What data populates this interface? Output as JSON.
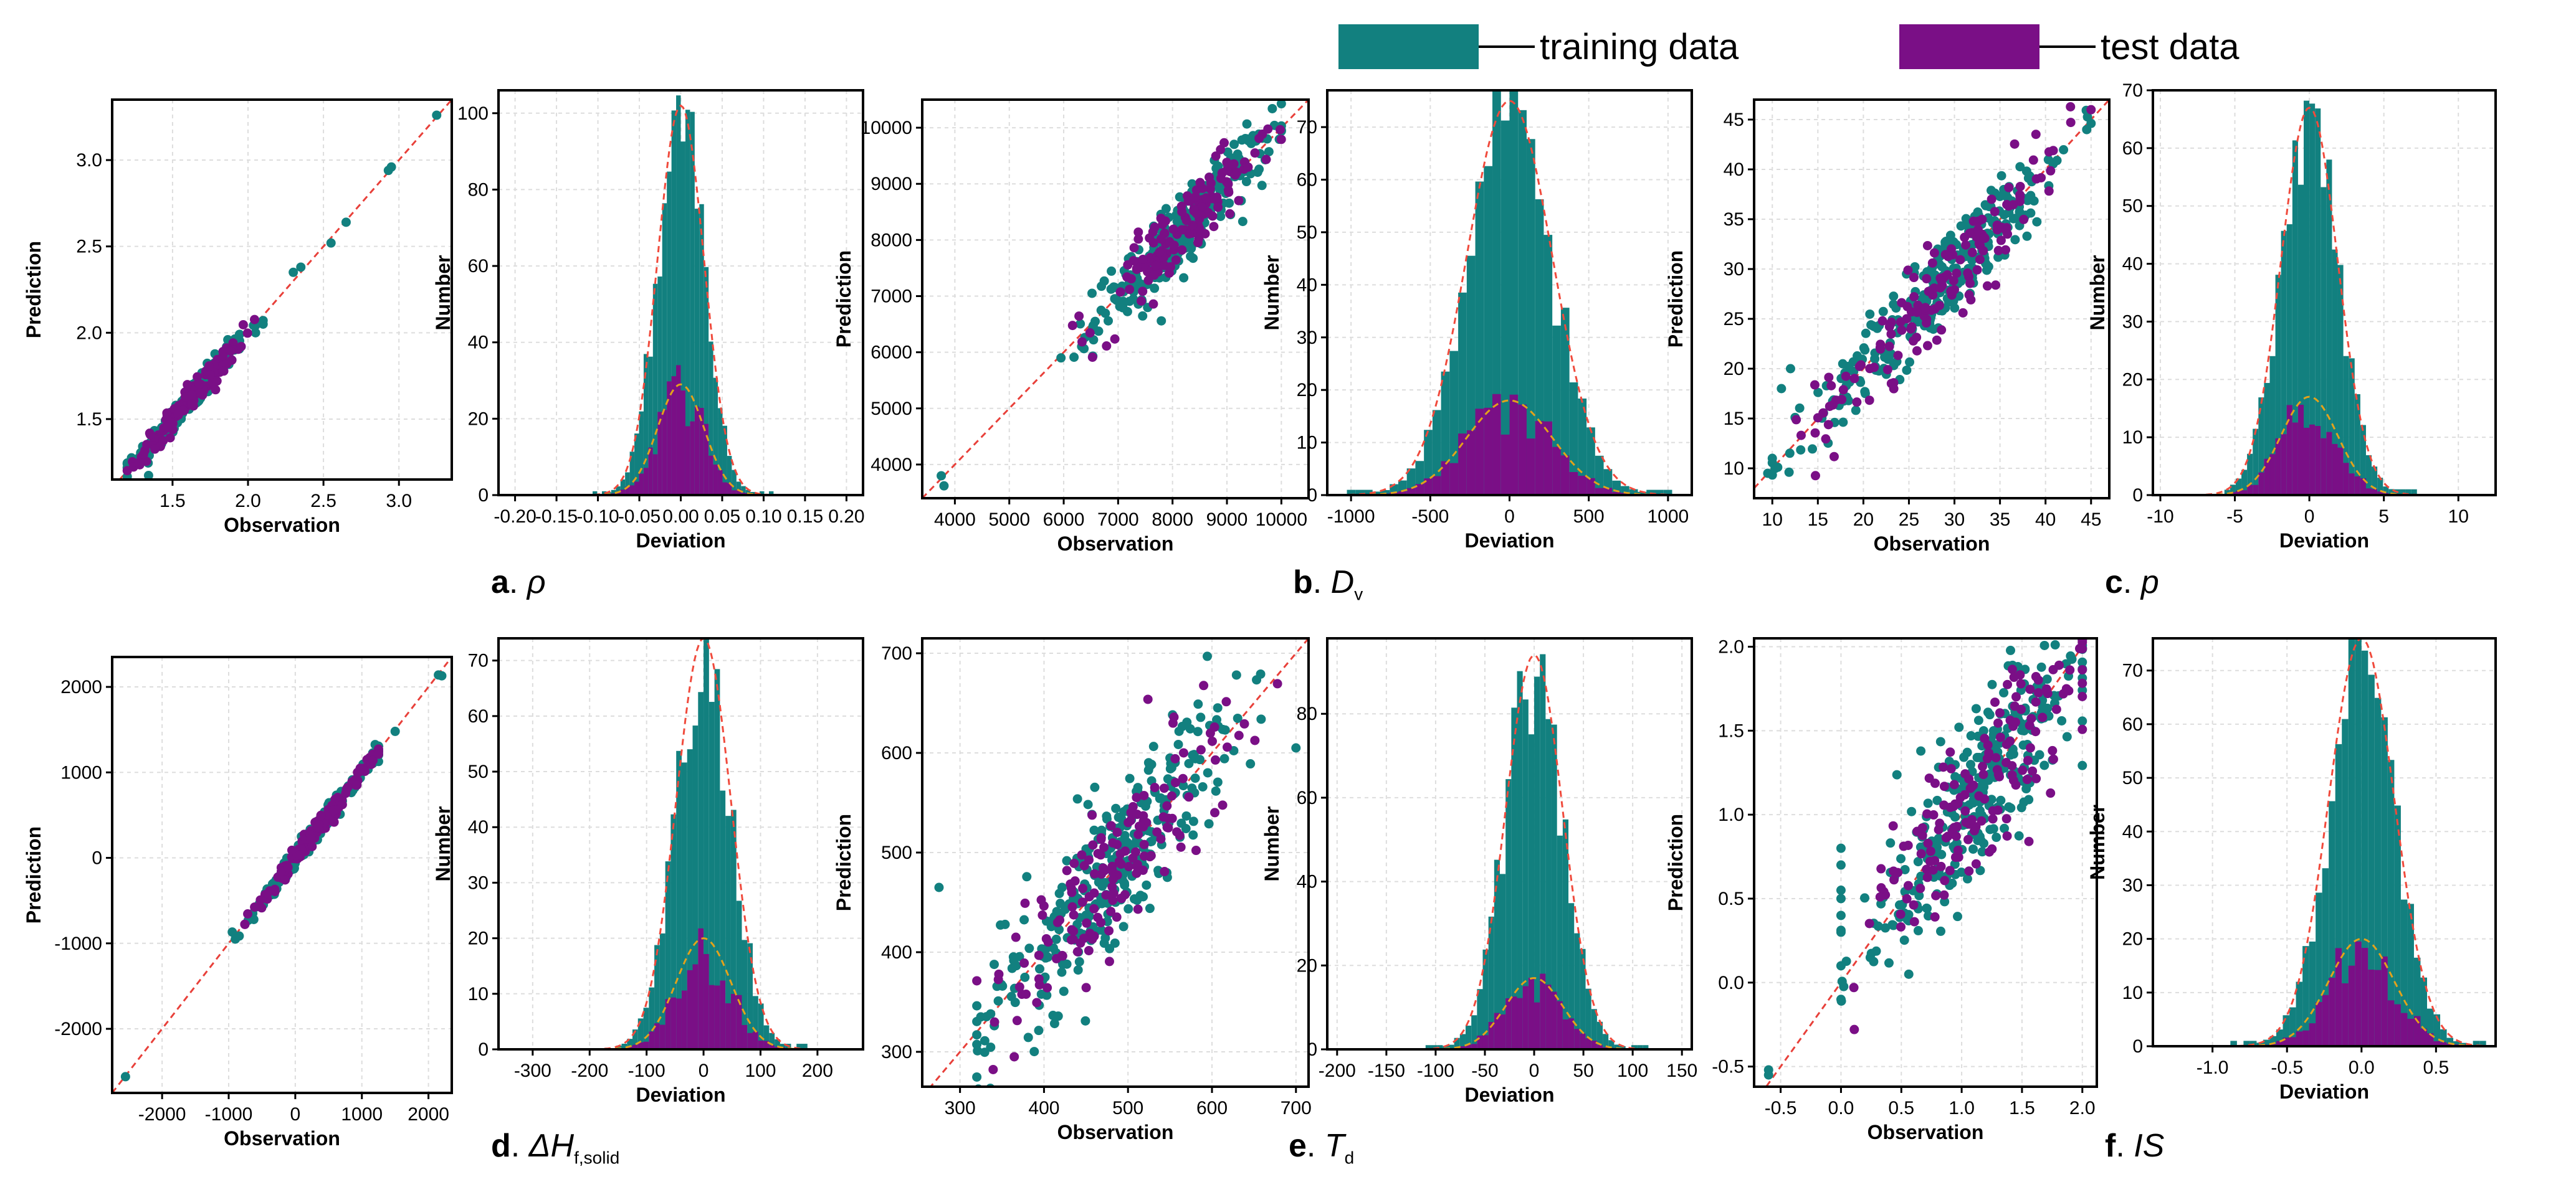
{
  "legend": {
    "training": {
      "label": "training data",
      "color": "#12807F"
    },
    "test": {
      "label": "test data",
      "color": "#7A0F86"
    }
  },
  "colors": {
    "fit_line": "#E8403A",
    "train_curve": "#F04A3C",
    "test_curve": "#E3A21A",
    "grid": "#DDDDDD"
  },
  "panel_labels": [
    {
      "letter": "a",
      "symbol": "ρ",
      "sub": ""
    },
    {
      "letter": "b",
      "symbol": "D",
      "sub": "v"
    },
    {
      "letter": "c",
      "symbol": "p",
      "sub": ""
    },
    {
      "letter": "d",
      "symbol": "ΔH",
      "sub": "f,solid"
    },
    {
      "letter": "e",
      "symbol": "T",
      "sub": "d"
    },
    {
      "letter": "f",
      "symbol": "IS",
      "sub": ""
    }
  ],
  "chart_data": [
    {
      "id": "a_scatter",
      "type": "scatter",
      "xlabel": "Observation",
      "ylabel": "Prediction",
      "xlim": [
        1.1,
        3.35
      ],
      "ylim": [
        1.15,
        3.35
      ],
      "xticks": [
        1.5,
        2.0,
        2.5,
        3.0
      ],
      "xtick_labels": [
        "1.5",
        "2.0",
        "2.5",
        "3.0"
      ],
      "yticks": [
        1.5,
        2.0,
        2.5,
        3.0
      ],
      "ytick_labels": [
        "1.5",
        "2.0",
        "2.5",
        "3.0"
      ],
      "scatter": {
        "min": 1.2,
        "max": 2.1,
        "center": 1.62,
        "sd": 0.18,
        "noise": 0.04,
        "n_train": 260,
        "n_test": 130,
        "extras": [
          [
            2.3,
            2.35
          ],
          [
            2.35,
            2.38
          ],
          [
            2.55,
            2.52
          ],
          [
            2.65,
            2.64
          ],
          [
            2.93,
            2.94
          ],
          [
            2.95,
            2.96
          ],
          [
            3.25,
            3.26
          ],
          [
            2.05,
            2.0
          ],
          [
            2.1,
            2.05
          ]
        ]
      }
    },
    {
      "id": "a_hist",
      "type": "histogram",
      "xlabel": "Deviation",
      "ylabel": "Number",
      "xlim": [
        -0.22,
        0.22
      ],
      "ylim": [
        0,
        106
      ],
      "xticks": [
        -0.2,
        -0.15,
        -0.1,
        -0.05,
        0.0,
        0.05,
        0.1,
        0.15,
        0.2
      ],
      "xtick_labels": [
        "-0.20",
        "-0.15",
        "-0.10",
        "-0.05",
        "0.00",
        "0.05",
        "0.10",
        "0.15",
        "0.20"
      ],
      "yticks": [
        0,
        20,
        40,
        60,
        80,
        100
      ],
      "ytick_labels": [
        "0",
        "20",
        "40",
        "60",
        "80",
        "100"
      ],
      "histogram": {
        "mean": 0.0,
        "sd": 0.028,
        "train_peak": 102,
        "test_peak": 29,
        "bins": 40
      }
    },
    {
      "id": "b_scatter",
      "type": "scatter",
      "xlabel": "Observation",
      "ylabel": "Prediction",
      "xlim": [
        3400,
        10500
      ],
      "ylim": [
        3400,
        10500
      ],
      "xticks": [
        4000,
        5000,
        6000,
        7000,
        8000,
        9000,
        10000
      ],
      "xtick_labels": [
        "4000",
        "5000",
        "6000",
        "7000",
        "8000",
        "9000",
        "10000"
      ],
      "yticks": [
        4000,
        5000,
        6000,
        7000,
        8000,
        9000,
        10000
      ],
      "ytick_labels": [
        "4000",
        "5000",
        "6000",
        "7000",
        "8000",
        "9000",
        "10000"
      ],
      "scatter": {
        "min": 6000,
        "max": 10000,
        "center": 8200,
        "sd": 800,
        "noise": 320,
        "n_train": 280,
        "n_test": 140,
        "extras": [
          [
            3750,
            3800
          ],
          [
            3800,
            3620
          ],
          [
            5950,
            5900
          ]
        ]
      }
    },
    {
      "id": "b_hist",
      "type": "histogram",
      "xlabel": "Deviation",
      "ylabel": "Number",
      "xlim": [
        -1150,
        1150
      ],
      "ylim": [
        0,
        77
      ],
      "xticks": [
        -1000,
        -500,
        0,
        500,
        1000
      ],
      "xtick_labels": [
        "-1000",
        "-500",
        "0",
        "500",
        "1000"
      ],
      "yticks": [
        0,
        10,
        20,
        30,
        40,
        50,
        60,
        70
      ],
      "ytick_labels": [
        "0",
        "10",
        "20",
        "30",
        "40",
        "50",
        "60",
        "70"
      ],
      "histogram": {
        "mean": 0,
        "sd": 270,
        "train_peak": 75,
        "test_peak": 18,
        "bins": 40
      }
    },
    {
      "id": "c_scatter",
      "type": "scatter",
      "xlabel": "Observation",
      "ylabel": "Prediction",
      "xlim": [
        8,
        47
      ],
      "ylim": [
        7,
        47
      ],
      "xticks": [
        10,
        15,
        20,
        25,
        30,
        35,
        40,
        45
      ],
      "xtick_labels": [
        "10",
        "15",
        "20",
        "25",
        "30",
        "35",
        "40",
        "45"
      ],
      "yticks": [
        10,
        15,
        20,
        25,
        30,
        35,
        40,
        45
      ],
      "ytick_labels": [
        "10",
        "15",
        "20",
        "25",
        "30",
        "35",
        "40",
        "45"
      ],
      "scatter": {
        "min": 10,
        "max": 45,
        "center": 29,
        "sd": 7,
        "noise": 2.3,
        "n_train": 300,
        "n_test": 150,
        "extras": [
          [
            9.5,
            9.5
          ],
          [
            10,
            11
          ],
          [
            12,
            20
          ],
          [
            11,
            18
          ]
        ]
      }
    },
    {
      "id": "c_hist",
      "type": "histogram",
      "xlabel": "Deviation",
      "ylabel": "Number",
      "xlim": [
        -10.5,
        12.5
      ],
      "ylim": [
        0,
        70
      ],
      "xticks": [
        -10,
        -5,
        0,
        5,
        10
      ],
      "xtick_labels": [
        "-10",
        "-5",
        "0",
        "5",
        "10"
      ],
      "yticks": [
        0,
        10,
        20,
        30,
        40,
        50,
        60,
        70
      ],
      "ytick_labels": [
        "0",
        "10",
        "20",
        "30",
        "40",
        "50",
        "60",
        "70"
      ],
      "histogram": {
        "mean": 0,
        "sd": 1.9,
        "train_peak": 67,
        "test_peak": 17,
        "bins": 40
      }
    },
    {
      "id": "d_scatter",
      "type": "scatter",
      "xlabel": "Observation",
      "ylabel": "Prediction",
      "xlim": [
        -2750,
        2350
      ],
      "ylim": [
        -2750,
        2350
      ],
      "xticks": [
        -2000,
        -1000,
        0,
        1000,
        2000
      ],
      "xtick_labels": [
        "-2000",
        "-1000",
        "0",
        "1000",
        "2000"
      ],
      "yticks": [
        -2000,
        -1000,
        0,
        1000,
        2000
      ],
      "ytick_labels": [
        "-2000",
        "-1000",
        "0",
        "1000",
        "2000"
      ],
      "scatter": {
        "min": -950,
        "max": 1250,
        "center": 350,
        "sd": 450,
        "noise": 55,
        "n_train": 280,
        "n_test": 140,
        "extras": [
          [
            -2550,
            -2560
          ],
          [
            2150,
            2140
          ],
          [
            2200,
            2130
          ],
          [
            1500,
            1480
          ],
          [
            -900,
            -950
          ]
        ]
      }
    },
    {
      "id": "d_hist",
      "type": "histogram",
      "xlabel": "Deviation",
      "ylabel": "Number",
      "xlim": [
        -360,
        280
      ],
      "ylim": [
        0,
        74
      ],
      "xticks": [
        -300,
        -200,
        -100,
        0,
        100,
        200
      ],
      "xtick_labels": [
        "-300",
        "-200",
        "-100",
        "0",
        "100",
        "200"
      ],
      "yticks": [
        0,
        10,
        20,
        30,
        40,
        50,
        60,
        70
      ],
      "ytick_labels": [
        "0",
        "10",
        "20",
        "30",
        "40",
        "50",
        "60",
        "70"
      ],
      "histogram": {
        "mean": 0,
        "sd": 48,
        "train_peak": 74,
        "test_peak": 20,
        "bins": 40
      }
    },
    {
      "id": "e_scatter",
      "type": "scatter",
      "xlabel": "Observation",
      "ylabel": "Prediction",
      "xlim": [
        255,
        715
      ],
      "ylim": [
        265,
        715
      ],
      "xticks": [
        300,
        400,
        500,
        600,
        700
      ],
      "xtick_labels": [
        "300",
        "400",
        "500",
        "600",
        "700"
      ],
      "yticks": [
        300,
        400,
        500,
        600,
        700
      ],
      "ytick_labels": [
        "300",
        "400",
        "500",
        "600",
        "700"
      ],
      "scatter": {
        "min": 320,
        "max": 680,
        "center": 480,
        "sd": 75,
        "noise": 40,
        "n_train": 320,
        "n_test": 160,
        "extras": [
          [
            275,
            465
          ],
          [
            700,
            605
          ]
        ]
      }
    },
    {
      "id": "e_hist",
      "type": "histogram",
      "xlabel": "Deviation",
      "ylabel": "Number",
      "xlim": [
        -210,
        160
      ],
      "ylim": [
        0,
        98
      ],
      "xticks": [
        -200,
        -150,
        -100,
        -50,
        0,
        50,
        100,
        150
      ],
      "xtick_labels": [
        "-200",
        "-150",
        "-100",
        "-50",
        "0",
        "50",
        "100",
        "150"
      ],
      "yticks": [
        0,
        20,
        40,
        60,
        80
      ],
      "ytick_labels": [
        "0",
        "20",
        "40",
        "60",
        "80"
      ],
      "histogram": {
        "mean": 0,
        "sd": 29,
        "train_peak": 94,
        "test_peak": 17,
        "bins": 40
      }
    },
    {
      "id": "f_scatter",
      "type": "scatter",
      "xlabel": "Observation",
      "ylabel": "Prediction",
      "xlim": [
        -0.72,
        2.12
      ],
      "ylim": [
        -0.62,
        2.05
      ],
      "xticks": [
        -0.5,
        0.0,
        0.5,
        1.0,
        1.5,
        2.0
      ],
      "xtick_labels": [
        "-0.5",
        "0.0",
        "0.5",
        "1.0",
        "1.5",
        "2.0"
      ],
      "yticks": [
        -0.5,
        0.0,
        0.5,
        1.0,
        1.5,
        2.0
      ],
      "ytick_labels": [
        "-0.5",
        "0.0",
        "0.5",
        "1.0",
        "1.5",
        "2.0"
      ],
      "scatter": {
        "min": 0.0,
        "max": 2.0,
        "center": 1.15,
        "sd": 0.45,
        "noise": 0.25,
        "n_train": 320,
        "n_test": 160,
        "extras": [
          [
            -0.6,
            -0.52
          ],
          [
            -0.6,
            -0.55
          ],
          [
            0.0,
            -0.1
          ],
          [
            0.0,
            0.1
          ],
          [
            0.0,
            0.3
          ],
          [
            0.0,
            0.5
          ],
          [
            0.0,
            0.7
          ],
          [
            0.0,
            0.4
          ],
          [
            0.0,
            0.55
          ],
          [
            0.0,
            0.8
          ]
        ]
      }
    },
    {
      "id": "f_hist",
      "type": "histogram",
      "xlabel": "Deviation",
      "ylabel": "Number",
      "xlim": [
        -1.4,
        0.9
      ],
      "ylim": [
        0,
        76
      ],
      "xticks": [
        -1.0,
        -0.5,
        0.0,
        0.5
      ],
      "xtick_labels": [
        "-1.0",
        "-0.5",
        "0.0",
        "0.5"
      ],
      "yticks": [
        0,
        10,
        20,
        30,
        40,
        50,
        60,
        70
      ],
      "ytick_labels": [
        "0",
        "10",
        "20",
        "30",
        "40",
        "50",
        "60",
        "70"
      ],
      "histogram": {
        "mean": 0.0,
        "sd": 0.22,
        "train_peak": 76,
        "test_peak": 20,
        "bins": 40
      }
    }
  ]
}
